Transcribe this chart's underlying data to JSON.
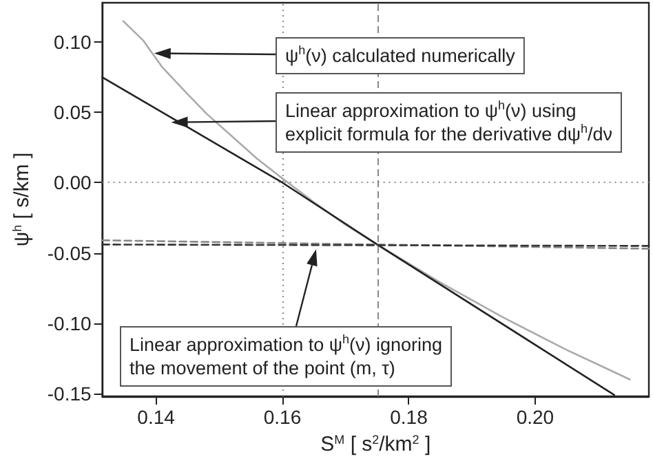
{
  "chart_data": {
    "type": "line",
    "xlabel": "S$^{M}$ [ s$^{2}$/km$^{2}$ ]",
    "ylabel": "ψ$^{h}$ [ s/km ]",
    "xlim": [
      0.1315,
      0.218
    ],
    "ylim": [
      -0.152,
      0.128
    ],
    "xticks": [
      0.14,
      0.16,
      0.18,
      {
        "value": 0.2,
        "label": "0.20"
      }
    ],
    "yticks": [
      {
        "value": -0.15,
        "label": "-0.15"
      },
      {
        "value": -0.1,
        "label": "-0.10"
      },
      {
        "value": -0.05,
        "label": "-0.05"
      },
      {
        "value": 0,
        "label": "0.00"
      },
      {
        "value": 0.05,
        "label": "0.05"
      },
      {
        "value": 0.1,
        "label": "0.10"
      }
    ],
    "grid": false,
    "marker": "none",
    "series": [
      {
        "color": "#aaaaaa",
        "line_style": "solid",
        "x": [
          0.1348,
          0.138,
          0.141,
          0.145,
          0.148,
          0.152,
          0.156,
          0.16,
          0.165,
          0.17,
          0.175,
          0.185,
          0.195,
          0.205,
          0.215
        ],
        "values": [
          0.115,
          0.101,
          0.082,
          0.063,
          0.049,
          0.033,
          0.017,
          0.003,
          -0.014,
          -0.03,
          -0.044,
          -0.071,
          -0.096,
          -0.119,
          -0.14
        ]
      },
      {
        "color": "#222222",
        "line_style": "solid",
        "x": [
          0.1315,
          0.16,
          0.175,
          0.2125
        ],
        "values": [
          0.075,
          0.0,
          -0.044,
          -0.151
        ]
      },
      {
        "color": "#888888",
        "line_style": "dashed",
        "x": [
          0.1315,
          0.218
        ],
        "values": [
          -0.041,
          -0.047
        ]
      },
      {
        "color": "#333333",
        "line_style": "dashed",
        "x": [
          0.1315,
          0.218
        ],
        "values": [
          -0.044,
          -0.045
        ]
      }
    ],
    "ref_lines": [
      {
        "axis": "x",
        "value": 0.16,
        "line_style": "dotted",
        "color": "#888888"
      },
      {
        "axis": "x",
        "value": 0.175,
        "line_style": "dashed",
        "color": "#888888"
      },
      {
        "axis": "y",
        "value": 0,
        "line_style": "dotted",
        "color": "#888888"
      }
    ],
    "annotations": [
      {
        "text": "ψ$^{h}$(ν) calculated numerically",
        "x": 0.141,
        "y": 0.092
      },
      {
        "text": "Linear approximation to ψ$^{h}$(ν) using\nexplicit formula for the derivative dψ$^{h}$/dν",
        "x": 0.1437,
        "y": 0.043
      },
      {
        "text": "Linear approximation to ψ$^{h}$(ν) ignoring\nthe movement of the point (m, τ)",
        "x": 0.165,
        "y": -0.053
      }
    ]
  }
}
